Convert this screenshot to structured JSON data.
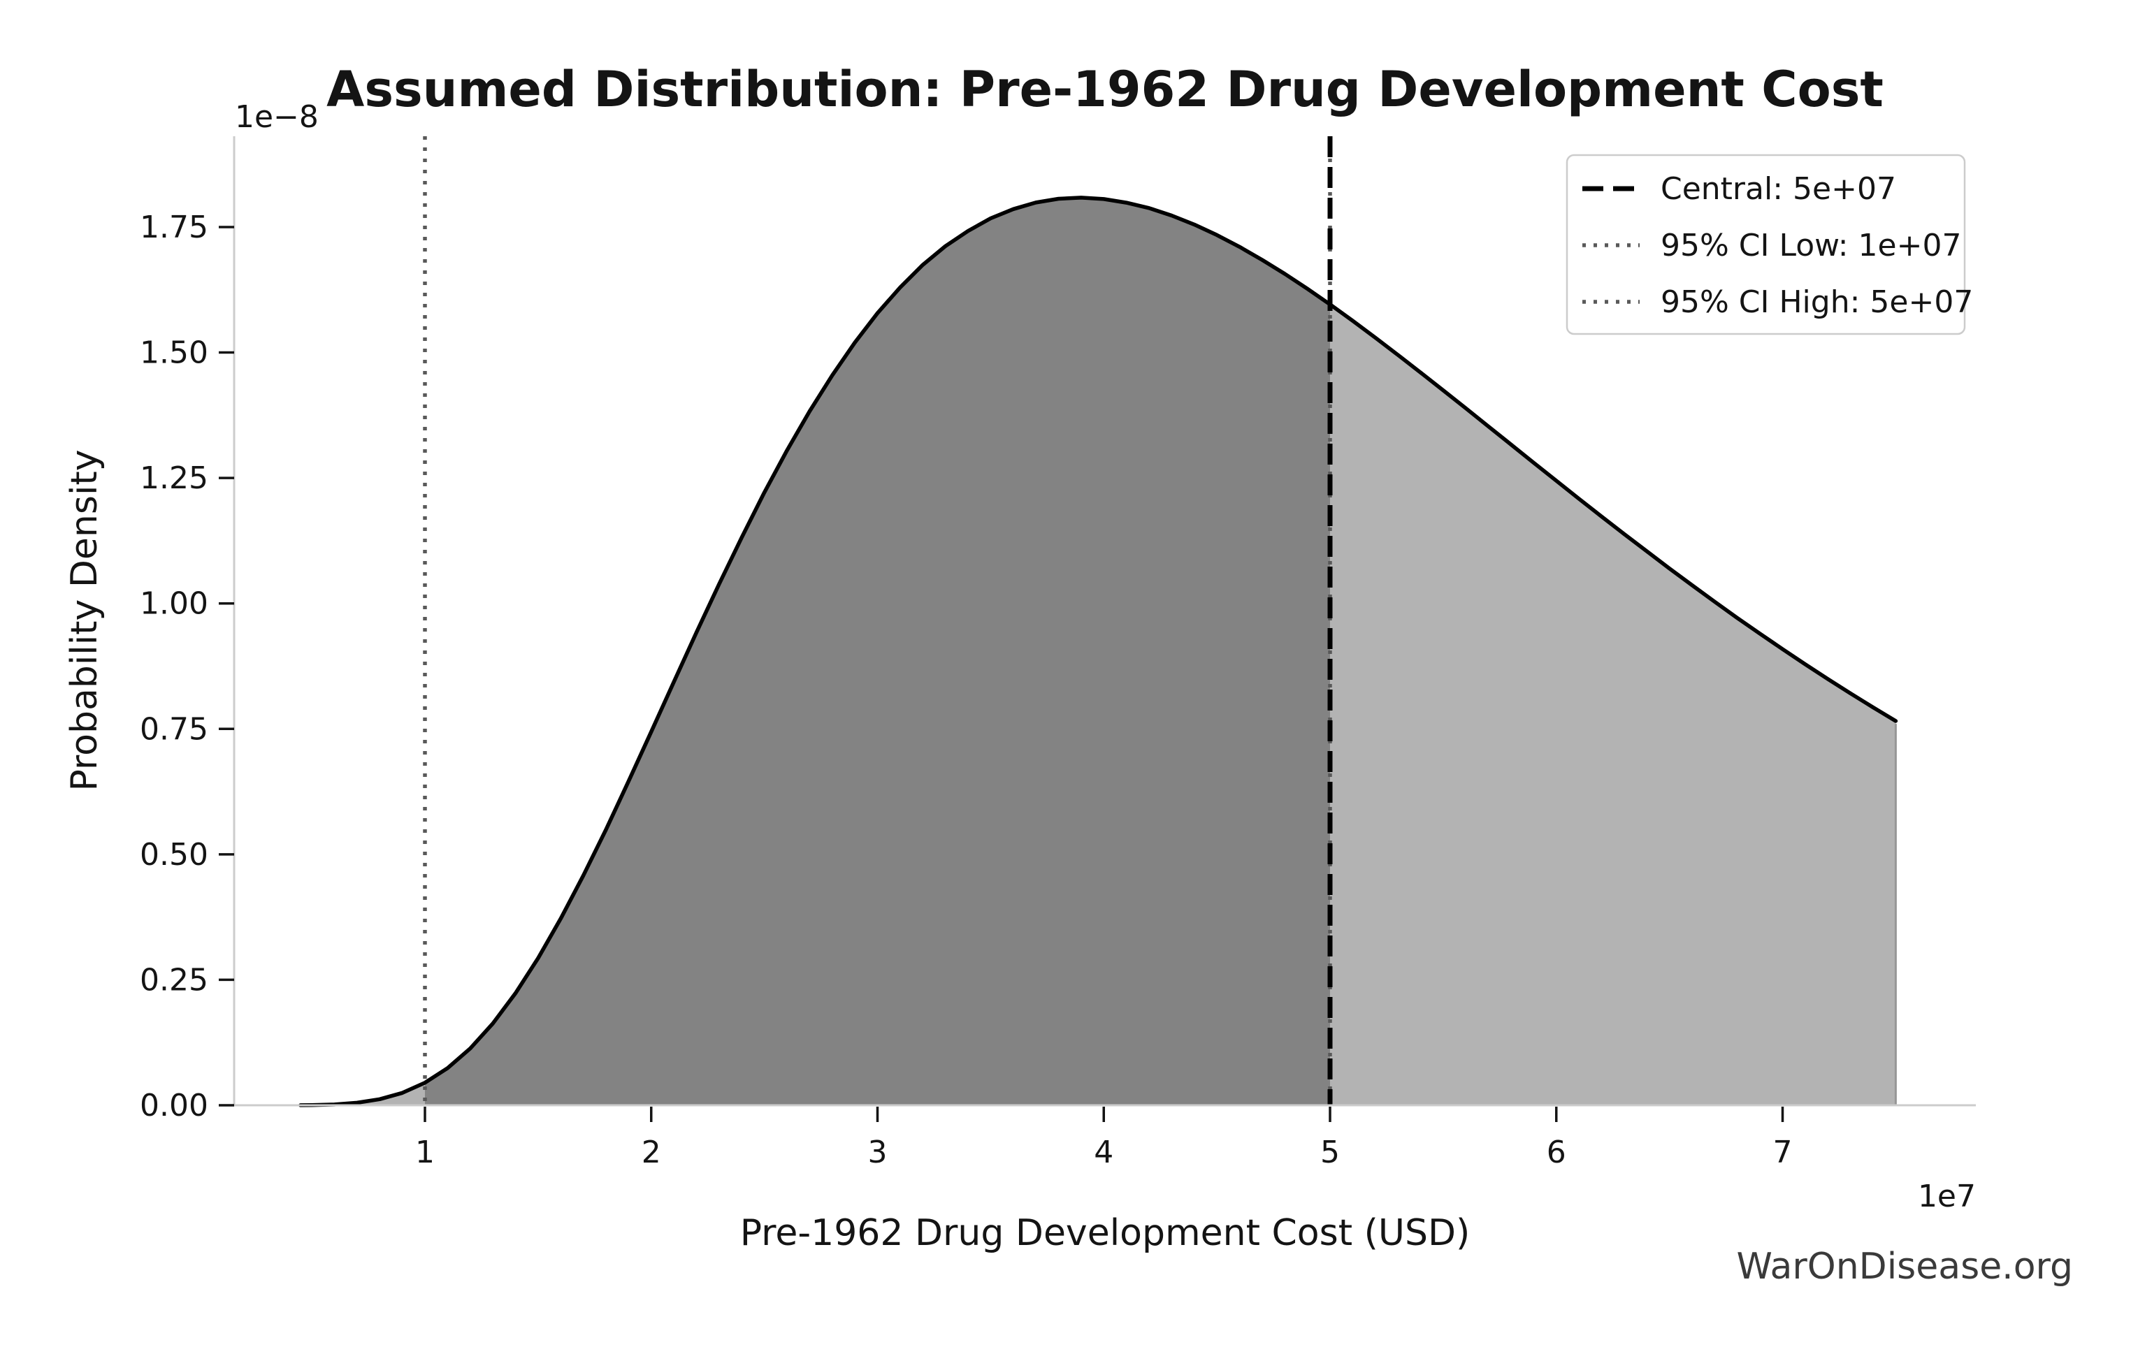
{
  "title": "Assumed Distribution: Pre-1962 Drug Development Cost",
  "watermark": "WarOnDisease.org",
  "axes": {
    "xlabel": "Pre-1962 Drug Development Cost (USD)",
    "ylabel": "Probability Density",
    "x_offset_text": "1e7",
    "y_offset_text": "1e−8",
    "x_ticks": [
      "1",
      "2",
      "3",
      "4",
      "5",
      "6",
      "7"
    ],
    "x_tick_values": [
      1,
      2,
      3,
      4,
      5,
      6,
      7
    ],
    "y_ticks": [
      "0.00",
      "0.25",
      "0.50",
      "0.75",
      "1.00",
      "1.25",
      "1.50",
      "1.75"
    ],
    "y_tick_values": [
      0,
      0.25,
      0.5,
      0.75,
      1.0,
      1.25,
      1.5,
      1.75
    ]
  },
  "legend": {
    "items": [
      {
        "label": "Central: 5e+07",
        "style": "dashed",
        "color": "#000000"
      },
      {
        "label": "95% CI Low: 1e+07",
        "style": "dotted",
        "color": "#595959"
      },
      {
        "label": "95% CI High: 5e+07",
        "style": "dotted",
        "color": "#595959"
      }
    ]
  },
  "colors": {
    "curve": "#000000",
    "fill_ci": "#838383",
    "fill_tail": "#b3b3b3",
    "fill_edge": "#969696",
    "central_line": "#000000",
    "ci_line": "#595959",
    "spine": "#cccccc",
    "text": "#141414",
    "watermark": "#3a3a3a"
  },
  "chart_data": {
    "type": "area",
    "title": "Assumed Distribution: Pre-1962 Drug Development Cost",
    "xlabel": "Pre-1962 Drug Development Cost (USD)",
    "ylabel": "Probability Density",
    "x_scale_factor": "1e7",
    "y_scale_factor": "1e-8",
    "xlim": [
      0.1,
      7.85
    ],
    "ylim": [
      0,
      1.93
    ],
    "grid": false,
    "legend_position": "upper right",
    "central": 5.0,
    "ci_low": 1.0,
    "ci_high": 5.0,
    "distribution": "lognormal(median=5e7, sigma=0.5), truncated at 7.5e7",
    "peak": {
      "x": 3.9,
      "y": 1.81
    },
    "vlines": [
      {
        "x": 1.0,
        "style": "dotted",
        "color": "#595959",
        "meaning": "95% CI Low: 1e+07"
      },
      {
        "x": 5.0,
        "style": "dotted",
        "color": "#595959",
        "meaning": "95% CI High: 5e+07"
      },
      {
        "x": 5.0,
        "style": "dashed",
        "color": "#000000",
        "meaning": "Central: 5e+07"
      }
    ],
    "regions": [
      {
        "from": 0.45,
        "to": 1.0,
        "fill": "tail"
      },
      {
        "from": 1.0,
        "to": 5.0,
        "fill": "ci"
      },
      {
        "from": 5.0,
        "to": 7.5,
        "fill": "tail"
      }
    ],
    "curve": [
      [
        0.45,
        0.0002
      ],
      [
        0.5,
        0.0004
      ],
      [
        0.6,
        0.0016
      ],
      [
        0.7,
        0.005
      ],
      [
        0.8,
        0.0121
      ],
      [
        0.9,
        0.0247
      ],
      [
        1.0,
        0.0449
      ],
      [
        1.1,
        0.074
      ],
      [
        1.2,
        0.1132
      ],
      [
        1.3,
        0.1629
      ],
      [
        1.4,
        0.2232
      ],
      [
        1.5,
        0.2931
      ],
      [
        1.6,
        0.372
      ],
      [
        1.7,
        0.4578
      ],
      [
        1.8,
        0.5492
      ],
      [
        1.9,
        0.6459
      ],
      [
        2.0,
        0.7444
      ],
      [
        2.1,
        0.8435
      ],
      [
        2.2,
        0.9423
      ],
      [
        2.3,
        1.0386
      ],
      [
        2.4,
        1.1315
      ],
      [
        2.5,
        1.2211
      ],
      [
        2.6,
        1.3049
      ],
      [
        2.7,
        1.383
      ],
      [
        2.8,
        1.4546
      ],
      [
        2.9,
        1.5198
      ],
      [
        3.0,
        1.5784
      ],
      [
        3.1,
        1.6297
      ],
      [
        3.2,
        1.6746
      ],
      [
        3.3,
        1.7118
      ],
      [
        3.4,
        1.7422
      ],
      [
        3.5,
        1.7674
      ],
      [
        3.6,
        1.7857
      ],
      [
        3.7,
        1.7989
      ],
      [
        3.8,
        1.8063
      ],
      [
        3.9,
        1.8086
      ],
      [
        4.0,
        1.8058
      ],
      [
        4.1,
        1.7986
      ],
      [
        4.2,
        1.7878
      ],
      [
        4.3,
        1.773
      ],
      [
        4.4,
        1.755
      ],
      [
        4.5,
        1.7341
      ],
      [
        4.6,
        1.7106
      ],
      [
        4.7,
        1.6846
      ],
      [
        4.8,
        1.6567
      ],
      [
        4.9,
        1.627
      ],
      [
        5.0,
        1.5958
      ],
      [
        5.1,
        1.5633
      ],
      [
        5.2,
        1.5296
      ],
      [
        5.3,
        1.4952
      ],
      [
        5.4,
        1.4601
      ],
      [
        5.5,
        1.4246
      ],
      [
        5.6,
        1.3888
      ],
      [
        5.7,
        1.3526
      ],
      [
        5.8,
        1.3166
      ],
      [
        5.9,
        1.2802
      ],
      [
        6.0,
        1.2444
      ],
      [
        6.1,
        1.2085
      ],
      [
        6.2,
        1.1732
      ],
      [
        6.3,
        1.1382
      ],
      [
        6.4,
        1.1038
      ],
      [
        6.5,
        1.0696
      ],
      [
        6.6,
        1.0363
      ],
      [
        6.7,
        1.0034
      ],
      [
        6.8,
        0.9709
      ],
      [
        6.9,
        0.9397
      ],
      [
        7.0,
        0.9089
      ],
      [
        7.1,
        0.8787
      ],
      [
        7.2,
        0.8493
      ],
      [
        7.3,
        0.8208
      ],
      [
        7.4,
        0.7928
      ],
      [
        7.5,
        0.7657
      ]
    ]
  }
}
